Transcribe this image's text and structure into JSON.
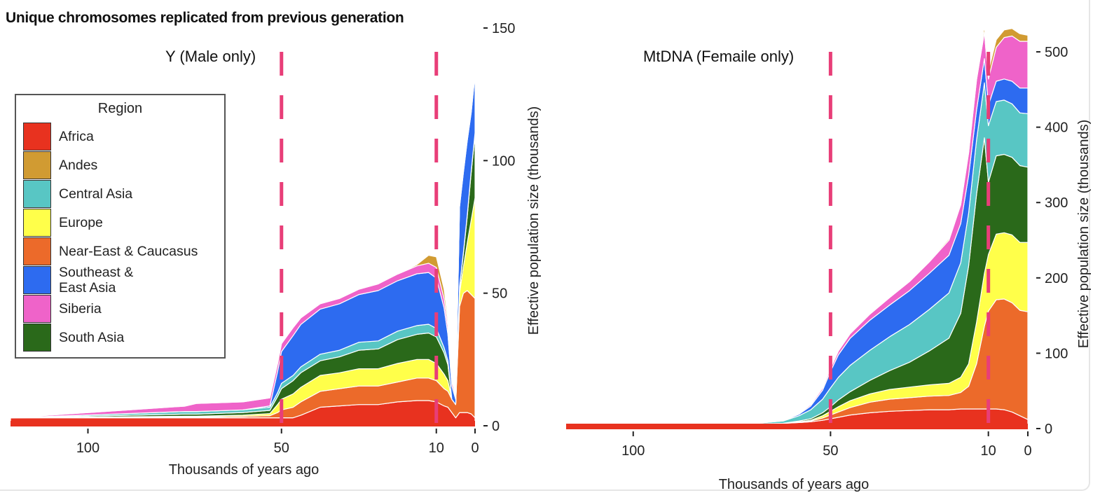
{
  "main_title": "Unique chromosomes replicated from previous generation",
  "legend": {
    "title": "Region",
    "items": [
      {
        "label": "Africa",
        "color": "#e8321f"
      },
      {
        "label": "Andes",
        "color": "#d19b32"
      },
      {
        "label": "Central Asia",
        "color": "#58c6c4"
      },
      {
        "label": "Europe",
        "color": "#ffff4a"
      },
      {
        "label": "Near-East & Caucasus",
        "color": "#ec6a2a"
      },
      {
        "label": "Southeast & East Asia",
        "color": "#2d6bf0"
      },
      {
        "label": "Siberia",
        "color": "#ef63c9"
      },
      {
        "label": "South Asia",
        "color": "#2a691a"
      }
    ]
  },
  "marker_color": "#e83e78",
  "chart_data": [
    {
      "type": "area",
      "stacked": true,
      "title": "Y (Male only)",
      "xlabel": "Thousands of years ago",
      "ylabel": "Effective population size (thousands)",
      "xlim": [
        120,
        0
      ],
      "ylim": [
        0,
        150
      ],
      "xticks": [
        100,
        50,
        10,
        0
      ],
      "yticks": [
        0,
        50,
        100,
        150
      ],
      "yaxis_side": "right",
      "reference_lines_x": [
        50,
        10
      ],
      "stack_order": [
        "Africa",
        "Near-East & Caucasus",
        "Europe",
        "South Asia",
        "Central Asia",
        "Southeast & East Asia",
        "Siberia",
        "Andes"
      ],
      "x": [
        120,
        75,
        72,
        60,
        53,
        51,
        50,
        47,
        45,
        40,
        35,
        30,
        25,
        20,
        15,
        12,
        10,
        8,
        7,
        6,
        5,
        4,
        3,
        2,
        1,
        0
      ],
      "series": [
        {
          "name": "Africa",
          "values": [
            3,
            3,
            3,
            3,
            3,
            3,
            3,
            3,
            4,
            7,
            7.5,
            8,
            8,
            9,
            9.5,
            9.5,
            9,
            7.5,
            7,
            5,
            3,
            5,
            5,
            5,
            4.5,
            3
          ]
        },
        {
          "name": "Near-East & Caucasus",
          "values": [
            0,
            0.3,
            0.3,
            0.5,
            0.8,
            2,
            3,
            4,
            5,
            6,
            6.5,
            7,
            7,
            7.5,
            8.5,
            8.5,
            8,
            6.5,
            6,
            5,
            5,
            40,
            45,
            46,
            45,
            45
          ]
        },
        {
          "name": "Europe",
          "values": [
            0,
            0.3,
            0.3,
            0.5,
            0.8,
            3,
            4,
            5,
            5.5,
            6,
            6,
            6.5,
            6.5,
            7,
            7,
            7,
            6.5,
            5.5,
            4,
            0,
            0,
            5,
            10,
            18,
            28,
            38
          ]
        },
        {
          "name": "South Asia",
          "values": [
            0,
            0.8,
            0.8,
            1,
            1.2,
            3,
            4,
            5,
            5.5,
            5.5,
            6,
            7,
            7.5,
            9,
            9.5,
            10,
            10,
            8,
            6,
            0,
            0,
            2,
            5,
            10,
            18,
            24
          ]
        },
        {
          "name": "Central Asia",
          "values": [
            0,
            1,
            1,
            1,
            1.2,
            1.5,
            2,
            2,
            2.2,
            2.5,
            2.5,
            3,
            3,
            3.2,
            3.3,
            3.3,
            3.2,
            2,
            1.5,
            0,
            0,
            0.5,
            0.5,
            0.5,
            0.5,
            0.5
          ]
        },
        {
          "name": "Southeast & East Asia",
          "values": [
            0,
            0,
            0,
            0,
            0.5,
            8,
            12,
            15,
            16,
            17,
            17.5,
            18,
            19,
            19,
            19.5,
            19.5,
            19,
            15,
            10,
            5,
            2,
            30,
            30,
            28,
            22,
            22
          ]
        },
        {
          "name": "Siberia",
          "values": [
            0,
            2,
            3,
            3,
            3,
            3,
            3,
            3,
            2.5,
            2,
            2,
            2,
            2.5,
            2.5,
            3,
            3.5,
            4,
            3.5,
            3,
            2,
            1,
            0.5,
            0.5,
            0.5,
            0.5,
            0.5
          ]
        },
        {
          "name": "Andes",
          "values": [
            0,
            0,
            0,
            0,
            0,
            0,
            0,
            0,
            0,
            0,
            0,
            0,
            0,
            0,
            0.5,
            3,
            4,
            3.5,
            2.5,
            1,
            0.5,
            0,
            0,
            0,
            0,
            0
          ]
        }
      ]
    },
    {
      "type": "area",
      "stacked": true,
      "title": "MtDNA (Femaile only)",
      "xlabel": "Thousands of years ago",
      "ylabel": "Effective population size (thousands)",
      "xlim": [
        117,
        0
      ],
      "ylim": [
        0,
        540
      ],
      "xticks": [
        100,
        50,
        10,
        0
      ],
      "yticks": [
        0,
        100,
        200,
        300,
        400,
        500
      ],
      "yaxis_side": "right",
      "reference_lines_x": [
        50,
        10
      ],
      "stack_order": [
        "Africa",
        "Near-East & Caucasus",
        "Europe",
        "South Asia",
        "Central Asia",
        "Southeast & East Asia",
        "Siberia",
        "Andes"
      ],
      "x": [
        117,
        80,
        70,
        62,
        58,
        55,
        52,
        50,
        48,
        45,
        40,
        35,
        30,
        25,
        20,
        17,
        15,
        13,
        11,
        10,
        8,
        6,
        4,
        2,
        0
      ],
      "series": [
        {
          "name": "Africa",
          "values": [
            5,
            5,
            6,
            7,
            8,
            9,
            11,
            13,
            15,
            18,
            21,
            23,
            24,
            25,
            25,
            26,
            26,
            26,
            26,
            26,
            26,
            25,
            22,
            17,
            12
          ]
        },
        {
          "name": "Near-East & Caucasus",
          "values": [
            0,
            0,
            0,
            0,
            0.5,
            1,
            3,
            5,
            7,
            10,
            14,
            16,
            17,
            18,
            19,
            22,
            30,
            60,
            110,
            130,
            145,
            147,
            145,
            140,
            143
          ]
        },
        {
          "name": "Europe",
          "values": [
            0,
            0,
            0,
            0,
            0.5,
            1,
            3,
            5,
            7,
            9,
            11,
            13,
            14,
            15,
            16,
            20,
            30,
            55,
            70,
            75,
            87,
            88,
            90,
            90,
            92
          ]
        },
        {
          "name": "South Asia",
          "values": [
            0,
            0,
            0,
            0,
            1,
            2,
            4,
            6,
            9,
            12,
            18,
            25,
            33,
            45,
            60,
            85,
            130,
            170,
            180,
            96,
            104,
            104,
            103,
            102,
            100
          ]
        },
        {
          "name": "Central Asia",
          "values": [
            0,
            0,
            0.5,
            3,
            7,
            12,
            18,
            25,
            30,
            35,
            40,
            45,
            50,
            55,
            60,
            67,
            70,
            72,
            73,
            75,
            72,
            72,
            71,
            70,
            71
          ]
        },
        {
          "name": "Southeast & East Asia",
          "values": [
            0,
            0,
            0,
            0.5,
            2,
            5,
            12,
            22,
            30,
            36,
            40,
            42,
            45,
            48,
            50,
            52,
            50,
            40,
            32,
            27,
            27,
            28,
            30,
            33,
            34
          ]
        },
        {
          "name": "Siberia",
          "values": [
            0,
            0,
            0,
            0.5,
            1,
            2,
            3,
            4,
            5,
            6,
            8,
            10,
            12,
            15,
            20,
            25,
            30,
            40,
            35,
            35,
            45,
            55,
            60,
            62,
            62
          ]
        },
        {
          "name": "Andes",
          "values": [
            0,
            0,
            0,
            0,
            0,
            0,
            0,
            0,
            0,
            0,
            0.5,
            1,
            1,
            1.5,
            2,
            3,
            3,
            4,
            8,
            10,
            10,
            10,
            10,
            10,
            8
          ]
        }
      ]
    }
  ]
}
